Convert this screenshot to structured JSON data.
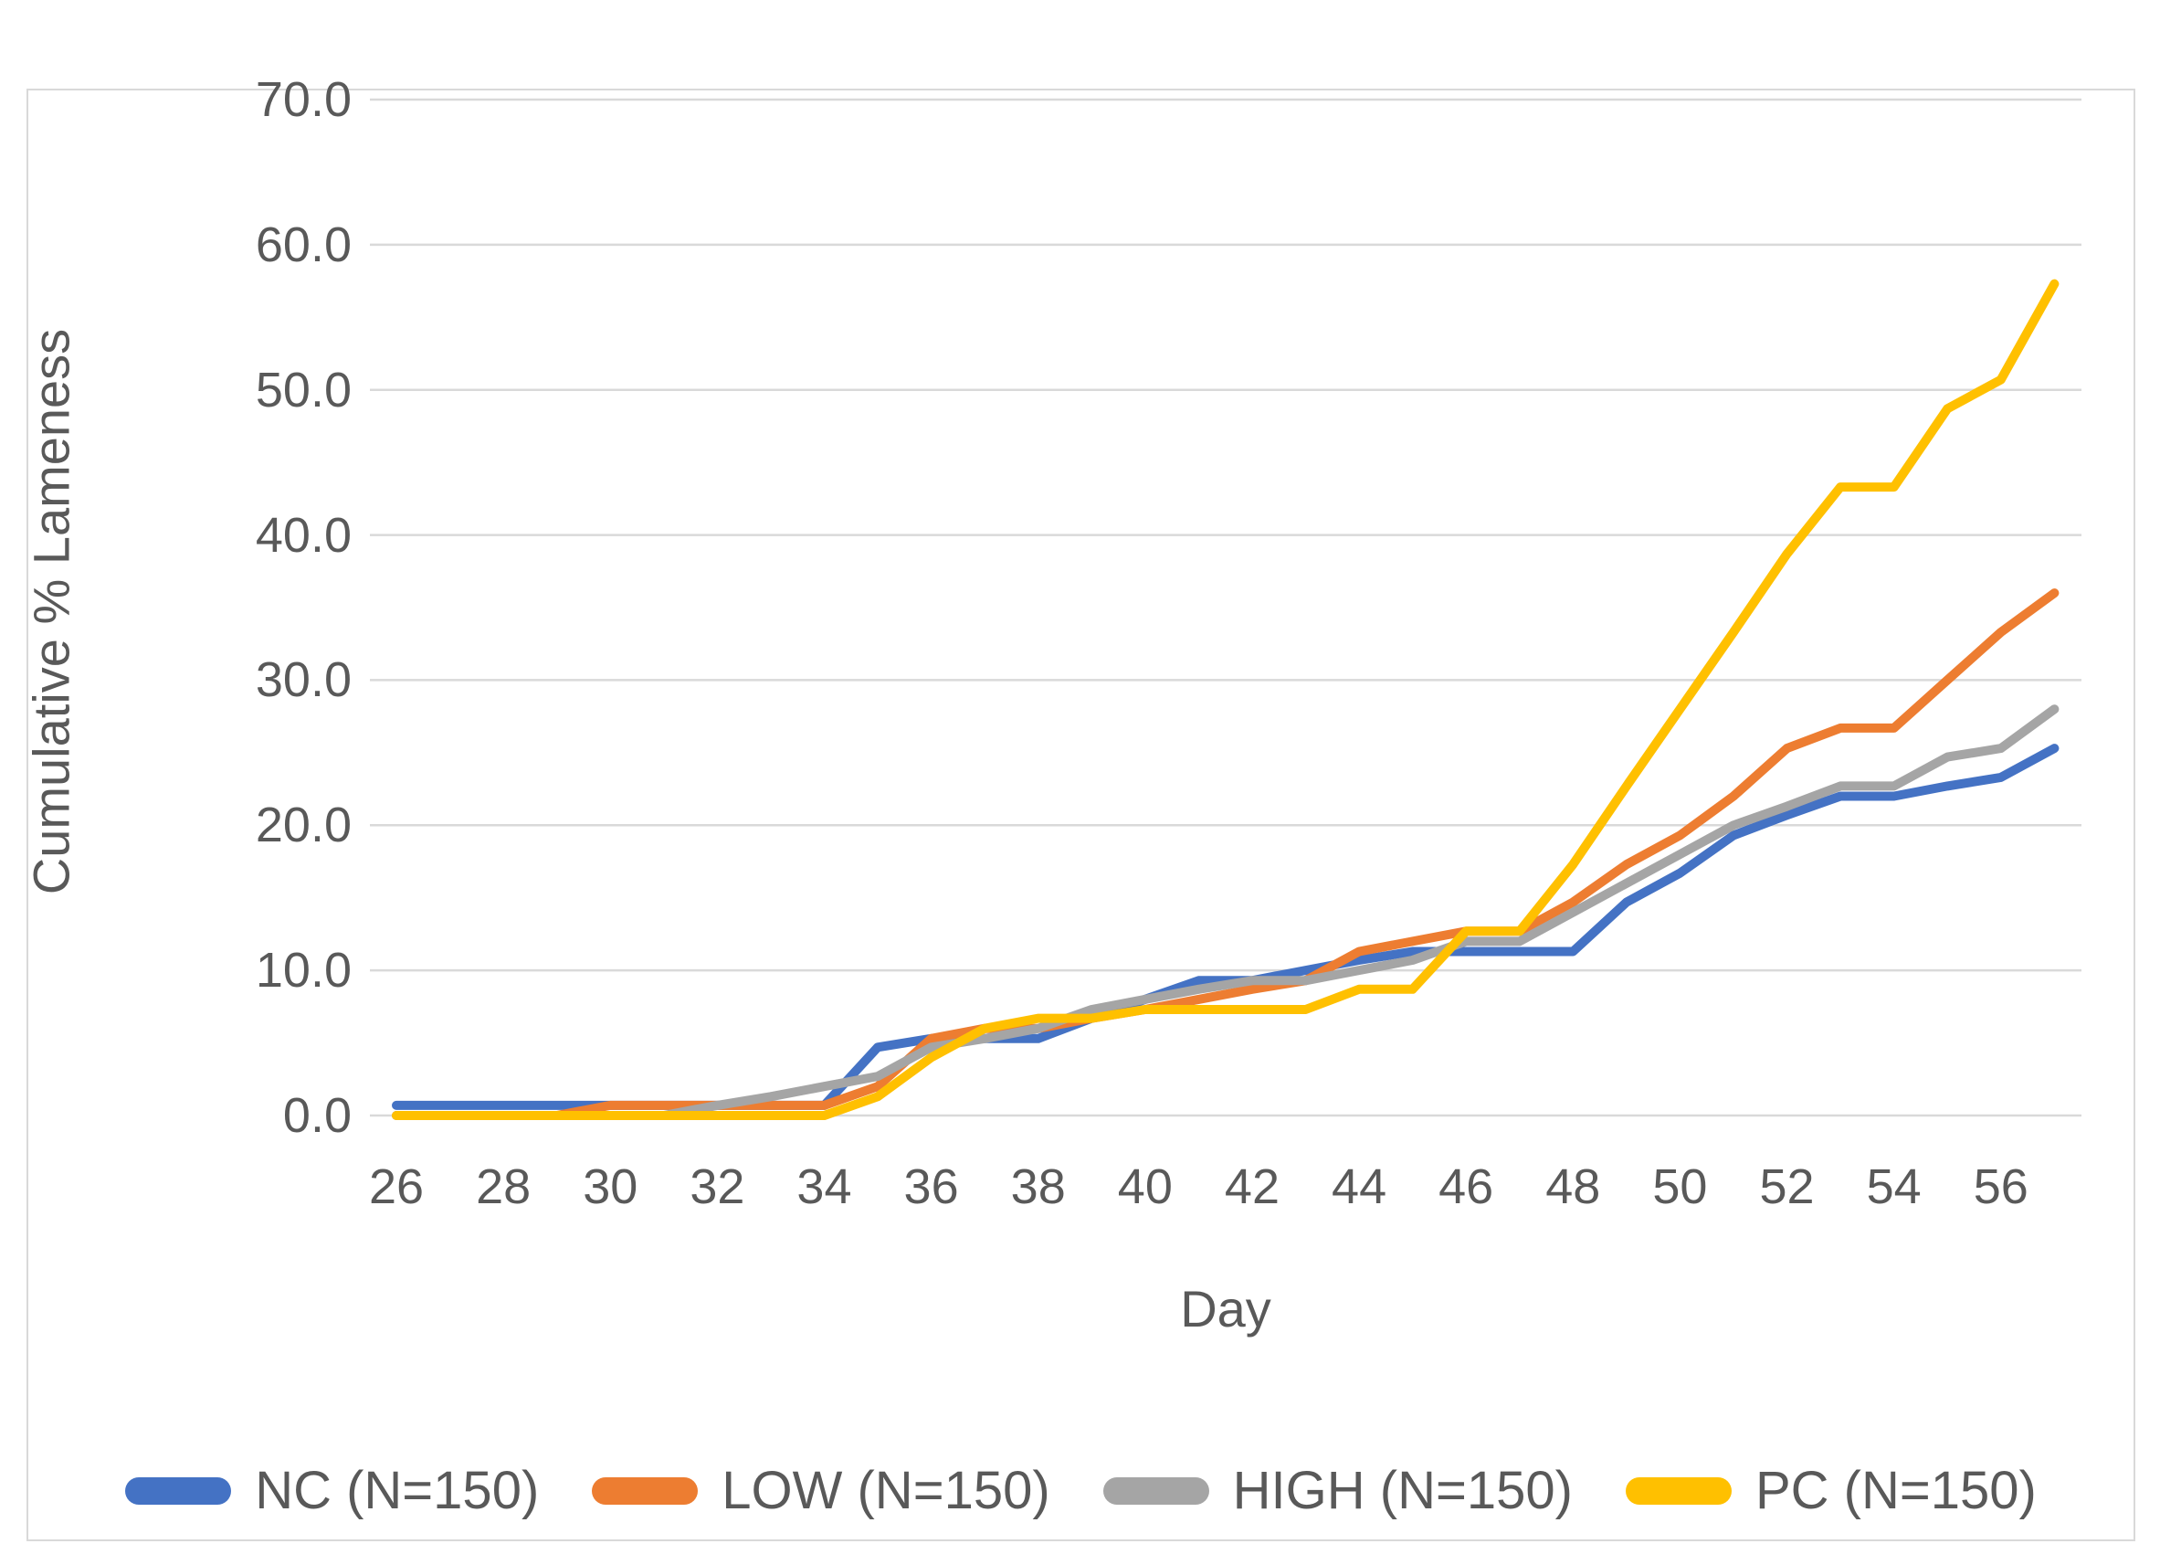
{
  "chart_data": {
    "type": "line",
    "title": "",
    "xlabel": "Day",
    "ylabel": "Cumulative % Lameness",
    "x": [
      26,
      27,
      28,
      29,
      30,
      31,
      32,
      33,
      34,
      35,
      36,
      37,
      38,
      39,
      40,
      41,
      42,
      43,
      44,
      45,
      46,
      47,
      48,
      49,
      50,
      51,
      52,
      53,
      54,
      55,
      56,
      57
    ],
    "x_tick_labels": [
      "26",
      "28",
      "30",
      "32",
      "34",
      "36",
      "38",
      "40",
      "42",
      "44",
      "46",
      "48",
      "50",
      "52",
      "54",
      "56"
    ],
    "y_tick_labels": [
      "70.0",
      "60.0",
      "50.0",
      "40.0",
      "30.0",
      "20.0",
      "10.0",
      "0.0"
    ],
    "ylim": [
      0,
      70
    ],
    "grid": true,
    "legend_position": "bottom",
    "series": [
      {
        "name": "NC (N=150)",
        "color": "#4472C4",
        "values": [
          0.7,
          0.7,
          0.7,
          0.7,
          0.7,
          0.7,
          0.7,
          0.7,
          0.7,
          4.7,
          5.3,
          5.3,
          5.3,
          6.7,
          8.0,
          9.3,
          9.3,
          10.0,
          10.7,
          11.3,
          11.3,
          11.3,
          11.3,
          14.7,
          16.7,
          19.3,
          20.7,
          22.0,
          22.0,
          22.7,
          23.3,
          25.3
        ]
      },
      {
        "name": "LOW (N=150)",
        "color": "#ED7D31",
        "values": [
          0.0,
          0.0,
          0.0,
          0.0,
          0.7,
          0.7,
          0.7,
          0.7,
          0.7,
          2.0,
          5.3,
          6.0,
          6.0,
          6.7,
          7.3,
          8.0,
          8.7,
          9.3,
          11.3,
          12.0,
          12.7,
          12.7,
          14.7,
          17.3,
          19.3,
          22.0,
          25.3,
          26.7,
          26.7,
          30.0,
          33.3,
          36.0
        ]
      },
      {
        "name": "HIGH (N=150)",
        "color": "#A5A5A5",
        "values": [
          0.0,
          0.0,
          0.0,
          0.0,
          0.0,
          0.0,
          0.7,
          1.3,
          2.0,
          2.7,
          4.7,
          5.3,
          6.0,
          7.3,
          8.0,
          8.7,
          9.3,
          9.3,
          10.0,
          10.7,
          12.0,
          12.0,
          14.0,
          16.0,
          18.0,
          20.0,
          21.3,
          22.7,
          22.7,
          24.7,
          25.3,
          28.0
        ]
      },
      {
        "name": "PC (N=150)",
        "color": "#FFC000",
        "values": [
          0.0,
          0.0,
          0.0,
          0.0,
          0.0,
          0.0,
          0.0,
          0.0,
          0.0,
          1.3,
          4.0,
          6.0,
          6.7,
          6.7,
          7.3,
          7.3,
          7.3,
          7.3,
          8.7,
          8.7,
          12.7,
          12.7,
          17.3,
          22.7,
          28.0,
          33.3,
          38.7,
          43.3,
          43.3,
          48.7,
          50.7,
          57.3
        ]
      }
    ],
    "colors": {
      "gridline": "#D9D9D9",
      "frame": "#D9D9D9",
      "text": "#595959",
      "background": "#FFFFFF"
    }
  }
}
